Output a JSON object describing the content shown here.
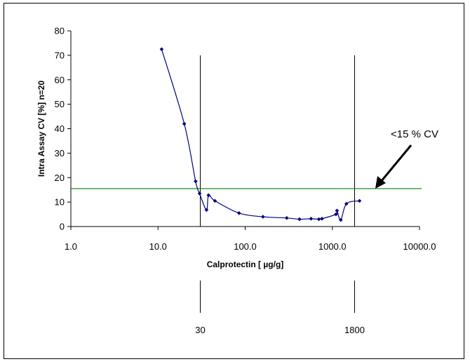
{
  "chart_data": {
    "type": "line",
    "xlabel": "Calprotectin [ µg/g]",
    "ylabel": "Intra Assay CV [%] n=20",
    "x_scale": "log",
    "xlim": [
      1.0,
      10000.0
    ],
    "ylim": [
      0,
      80
    ],
    "x_ticks": [
      "1.0",
      "10.0",
      "100.0",
      "1000.0",
      "10000.0"
    ],
    "y_ticks": [
      "0",
      "10",
      "20",
      "30",
      "40",
      "50",
      "60",
      "70",
      "80"
    ],
    "grid": false,
    "series": [
      {
        "x": [
          11,
          20,
          27,
          30,
          36,
          38,
          45,
          85,
          160,
          300,
          420,
          570,
          700,
          760,
          1100,
          1130,
          1250,
          1450,
          2050
        ],
        "y": [
          72.5,
          42,
          18.5,
          13.5,
          6.8,
          12.8,
          10.5,
          5.5,
          4,
          3.5,
          3,
          3.2,
          3,
          3.2,
          5,
          6.5,
          2.7,
          9.3,
          10.5
        ],
        "color": "#000080"
      }
    ],
    "reference_line": {
      "y": 15.5,
      "color": "#008000"
    },
    "vertical_lines": [
      {
        "x": 30,
        "label": "30"
      },
      {
        "x": 1800,
        "label": "1800"
      }
    ],
    "annotation": {
      "text": "<15 % CV"
    }
  }
}
